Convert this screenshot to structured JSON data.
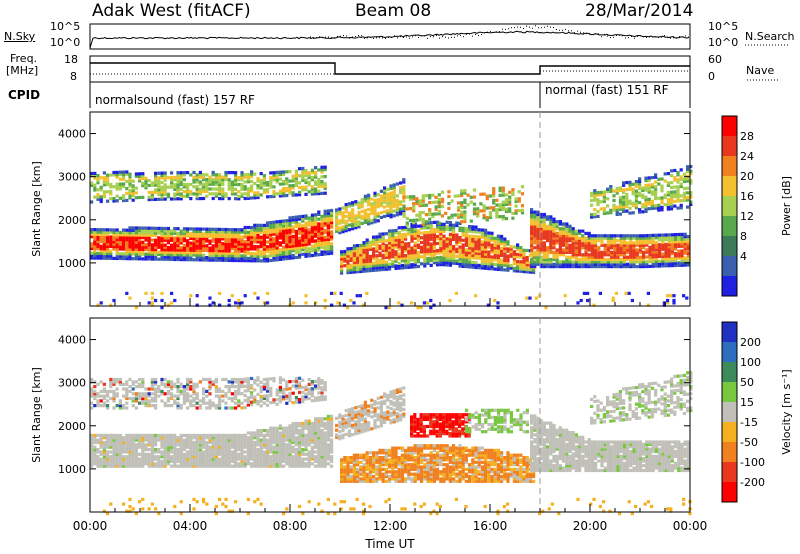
{
  "header": {
    "station": "Adak West (fitACF)",
    "beam": "Beam 08",
    "date": "28/Mar/2014"
  },
  "sky_panel": {
    "left_label": "N.Sky",
    "right_label": "N.Search",
    "left_ticks": [
      "10^5",
      "10^0"
    ],
    "right_ticks": [
      "10^5",
      "10^0"
    ]
  },
  "freq_panel": {
    "left_label_line1": "Freq.",
    "left_label_line2": "[MHz]",
    "left_ticks": [
      "18",
      "8"
    ],
    "right_label": "Nave",
    "right_ticks": [
      "60",
      "0"
    ]
  },
  "cpid_panel": {
    "label": "CPID",
    "segments": [
      {
        "text": "normalsound (fast) 157 RF",
        "start_hour": 0
      },
      {
        "text": "normal (fast) 151 RF",
        "start_hour": 18
      }
    ]
  },
  "chart_data": [
    {
      "type": "heatmap",
      "name": "Power",
      "xlabel": "",
      "ylabel": "Slant Range [km]",
      "xlim_hours": [
        0,
        24
      ],
      "ylim": [
        0,
        4500
      ],
      "yticks": [
        "1000",
        "2000",
        "3000",
        "4000"
      ],
      "colorbar": {
        "label": "Power [dB]",
        "ticks": [
          "28",
          "24",
          "20",
          "16",
          "12",
          "8",
          "4"
        ],
        "colors": [
          "#2020e0",
          "#3a5fb0",
          "#3d7a5a",
          "#58a84c",
          "#a8d050",
          "#f4c030",
          "#f08020",
          "#e83820",
          "#ff0000"
        ]
      },
      "features": [
        {
          "hours": [
            0,
            9.5
          ],
          "range_km": [
            1100,
            1800
          ],
          "level_db": 26
        },
        {
          "hours": [
            0,
            9.5
          ],
          "range_km": [
            2500,
            3200
          ],
          "level_db": 16
        },
        {
          "hours": [
            10,
            17.5
          ],
          "range_km": [
            800,
            1800
          ],
          "level_db": 22
        },
        {
          "hours": [
            18,
            24
          ],
          "range_km": [
            1000,
            1800
          ],
          "level_db": 26
        }
      ]
    },
    {
      "type": "heatmap",
      "name": "Velocity",
      "xlabel": "Time UT",
      "ylabel": "Slant Range [km]",
      "xlim_hours": [
        0,
        24
      ],
      "ylim": [
        0,
        4500
      ],
      "yticks": [
        "1000",
        "2000",
        "3000",
        "4000"
      ],
      "xticks": [
        "00:00",
        "04:00",
        "08:00",
        "12:00",
        "16:00",
        "20:00",
        "00:00"
      ],
      "colorbar": {
        "label": "Velocity [m s⁻¹]",
        "ticks": [
          "200",
          "100",
          "50",
          "15",
          "-15",
          "-50",
          "-100",
          "-200"
        ],
        "colors": [
          "#2030c0",
          "#2d6ec0",
          "#3d8a5a",
          "#78c840",
          "#c0c0b8",
          "#f4b020",
          "#f08020",
          "#e83820",
          "#ff0000"
        ]
      },
      "features": [
        {
          "hours": [
            0,
            9.5
          ],
          "range_km": [
            1100,
            1800
          ],
          "velocity_ms": 0
        },
        {
          "hours": [
            10,
            17.5
          ],
          "range_km": [
            700,
            1500
          ],
          "velocity_ms": -50
        },
        {
          "hours": [
            13,
            15
          ],
          "range_km": [
            1800,
            2300
          ],
          "velocity_ms": -200
        },
        {
          "hours": [
            18,
            24
          ],
          "range_km": [
            1000,
            1800
          ],
          "velocity_ms": 0
        }
      ]
    }
  ]
}
